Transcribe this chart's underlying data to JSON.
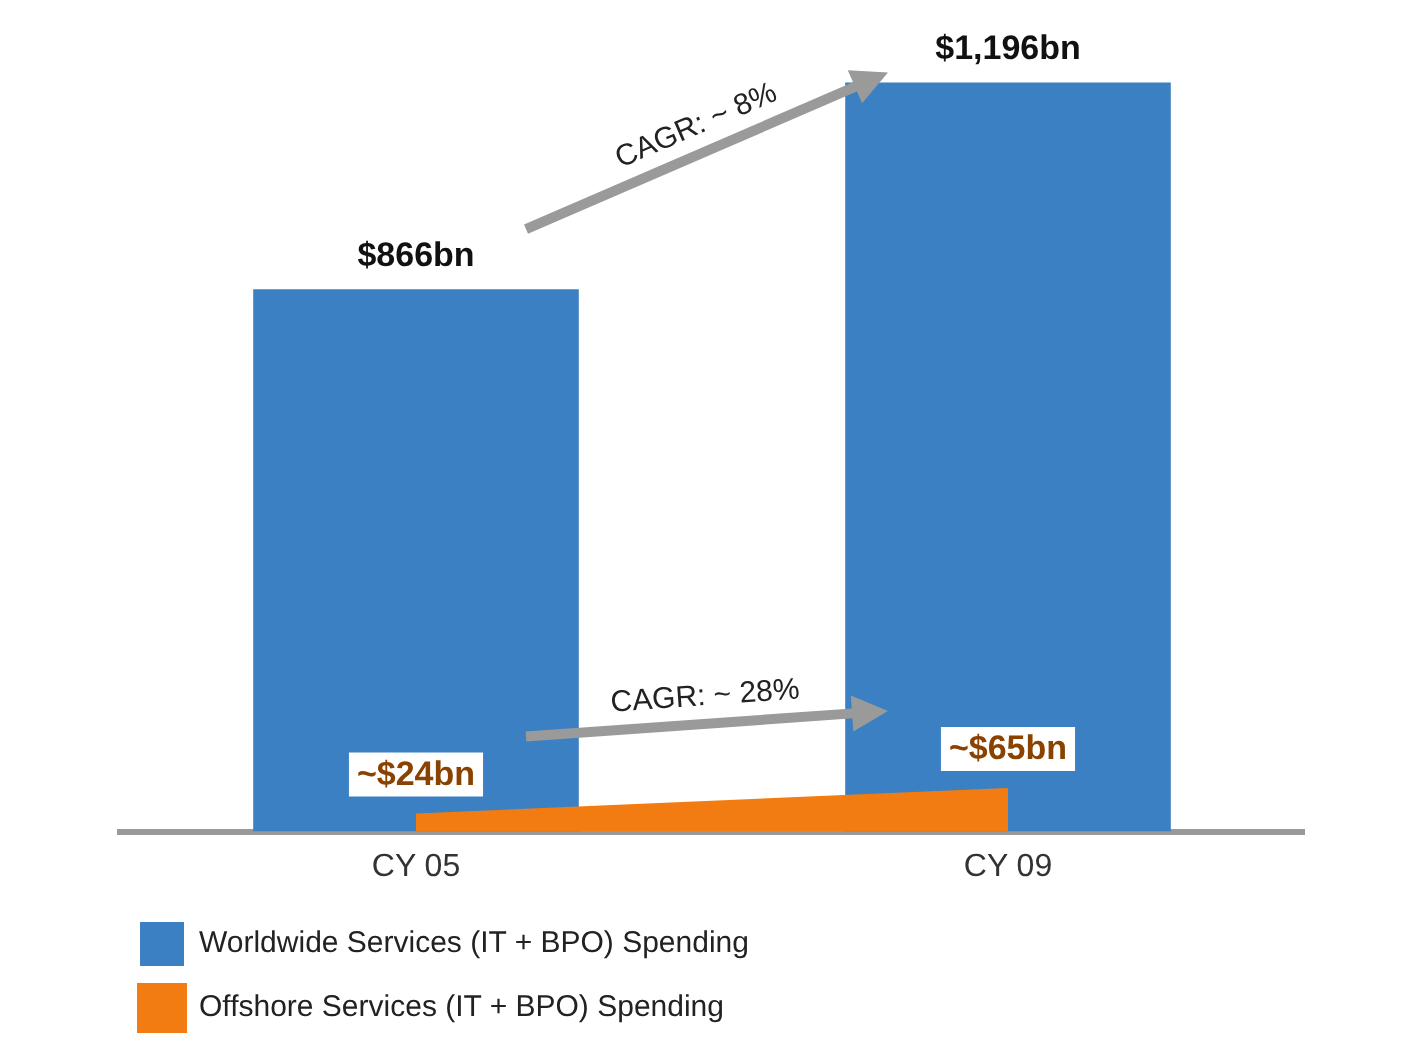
{
  "chart_data": {
    "type": "bar",
    "categories": [
      "CY 05",
      "CY 09"
    ],
    "series": [
      {
        "name": "Worldwide Services (IT + BPO) Spending",
        "color": "#3b80c2",
        "values": [
          866,
          1196
        ],
        "value_labels": [
          "$866bn",
          "$1,196bn"
        ]
      },
      {
        "name": "Offshore Services (IT + BPO) Spending",
        "type": "area",
        "color": "#f27c12",
        "values": [
          24,
          65
        ],
        "value_labels": [
          "~$24bn",
          "~$65bn"
        ]
      }
    ],
    "annotations": [
      "CAGR: ~ 8%",
      "CAGR: ~ 28%"
    ],
    "legend": "bottom",
    "grid": false
  }
}
